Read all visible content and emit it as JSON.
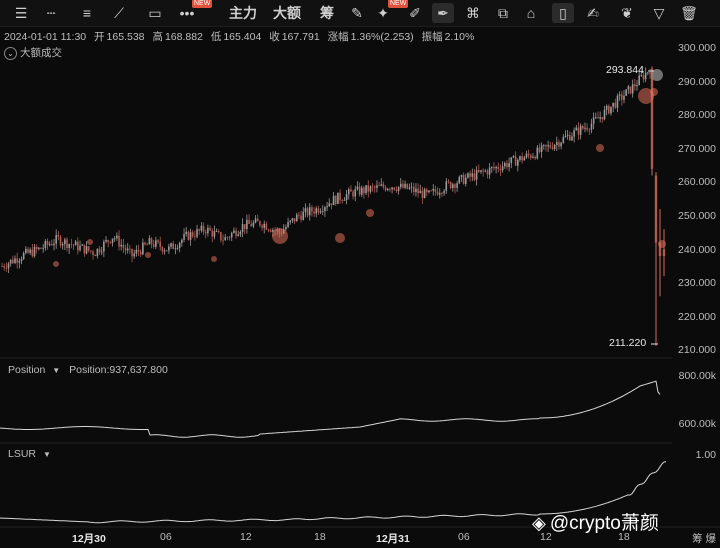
{
  "toolbar": {
    "items": [
      {
        "id": "menu",
        "glyph": "☰"
      },
      {
        "id": "hline",
        "glyph": "┄"
      },
      {
        "id": "lines",
        "glyph": "≡"
      },
      {
        "id": "trend",
        "glyph": "⟋"
      },
      {
        "id": "rect",
        "glyph": "▭"
      },
      {
        "id": "more",
        "glyph": "•••",
        "badge": "NEW"
      },
      {
        "id": "main-force",
        "label": "主力"
      },
      {
        "id": "large-order",
        "label": "大额"
      },
      {
        "id": "chips",
        "label": "筹"
      },
      {
        "id": "chart-edit",
        "glyph": "✎"
      },
      {
        "id": "ai",
        "glyph": "✦",
        "badge": "NEW"
      },
      {
        "id": "ruler",
        "glyph": "✐"
      },
      {
        "id": "pen",
        "glyph": "✒",
        "selected": true
      },
      {
        "id": "magnet",
        "glyph": "⌘"
      },
      {
        "id": "copy",
        "glyph": "⧉"
      },
      {
        "id": "lock",
        "glyph": "⌂"
      },
      {
        "id": "layout",
        "glyph": "▯",
        "selected": true
      },
      {
        "id": "note",
        "glyph": "✍"
      },
      {
        "id": "brush",
        "glyph": "❦"
      },
      {
        "id": "filter",
        "glyph": "▽"
      },
      {
        "id": "trash",
        "glyph": "🗑"
      }
    ]
  },
  "ohlc": {
    "datetime": "2024-01-01 11:30",
    "open_label": "开",
    "open": "165.538",
    "high_label": "高",
    "high": "168.882",
    "low_label": "低",
    "low": "165.404",
    "close_label": "收",
    "close": "167.791",
    "change_label": "涨幅",
    "change": "1.36%(2.253)",
    "amplitude_label": "振幅",
    "amplitude": "2.10%"
  },
  "volume_label": "大额成交",
  "price_axis": [
    "300.000",
    "290.000",
    "280.000",
    "270.000",
    "260.000",
    "250.000",
    "240.000",
    "230.000",
    "220.000",
    "210.000"
  ],
  "high_callout": "293.844",
  "low_callout": "211.220",
  "position_panel": {
    "name": "Position",
    "value_label": "Position:937,637.800",
    "axis": [
      "800.00k",
      "600.00k"
    ]
  },
  "lsur_panel": {
    "name": "LSUR",
    "axis": [
      "1.00"
    ]
  },
  "time_axis": [
    {
      "label": "12月30",
      "bold": true
    },
    {
      "label": "06",
      "bold": false
    },
    {
      "label": "12",
      "bold": false
    },
    {
      "label": "18",
      "bold": false
    },
    {
      "label": "12月31",
      "bold": true
    },
    {
      "label": "06",
      "bold": false
    },
    {
      "label": "12",
      "bold": false
    },
    {
      "label": "18",
      "bold": false
    }
  ],
  "footer_right": "筹 爆",
  "watermark": "@crypto萧颜",
  "colors": {
    "up": "#9a9a9a",
    "down": "#b05a50",
    "marker": "#e0705a"
  },
  "chart_data": {
    "type": "line",
    "series": [
      {
        "values": [
          235,
          238,
          240,
          243,
          241,
          239,
          244,
          238,
          242,
          240,
          244,
          246,
          243,
          247,
          248,
          245,
          250,
          252,
          255,
          257,
          258,
          259,
          258,
          256,
          259,
          261,
          263,
          265,
          267,
          269,
          272,
          275,
          278,
          283,
          288,
          293.844,
          211.22,
          242
        ]
      }
    ],
    "ylim": [
      210,
      300
    ]
  }
}
